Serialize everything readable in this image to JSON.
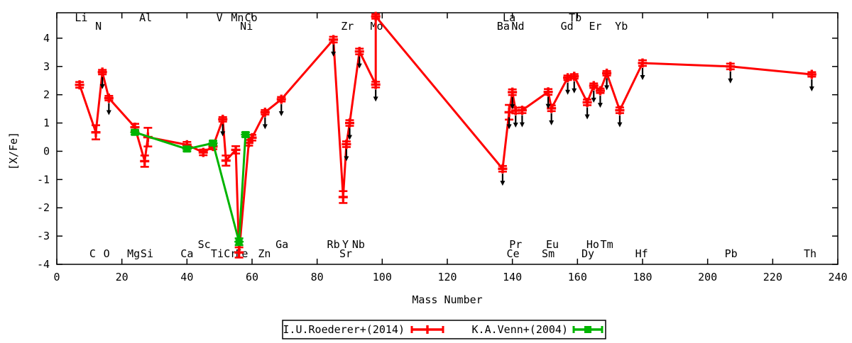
{
  "chart_data": {
    "type": "line",
    "title": "",
    "xlabel": "Mass Number",
    "ylabel": "[X/Fe]",
    "xlim": [
      0,
      240
    ],
    "ylim": [
      -4,
      4.9
    ],
    "xticks": [
      0,
      20,
      40,
      60,
      80,
      100,
      120,
      140,
      160,
      180,
      200,
      220,
      240
    ],
    "yticks": [
      -4,
      -3,
      -2,
      -1,
      0,
      1,
      2,
      3,
      4
    ],
    "grid": false,
    "legend_position": "below-plot-center",
    "upper_limit_symbol": "black-downward-arrow",
    "colors": {
      "roederer": "#ff0000",
      "venn": "#00b400",
      "arrows": "#000000",
      "frame": "#000000"
    },
    "series": [
      {
        "name": "I.U.Roederer+(2014)",
        "color": "#ff0000",
        "marker": "plus",
        "points": [
          {
            "element": "Li",
            "x": 7,
            "y": 2.35,
            "err": 0.1,
            "limit": false
          },
          {
            "element": "C",
            "x": 12,
            "y": 0.67,
            "err": 0.25,
            "limit": false
          },
          {
            "element": "N",
            "x": 14,
            "y": 2.8,
            "err": 0.08,
            "limit": true
          },
          {
            "element": "O",
            "x": 16,
            "y": 1.88,
            "err": 0.08,
            "limit": true
          },
          {
            "element": "Mg",
            "x": 24,
            "y": 0.85,
            "err": 0.12,
            "limit": false
          },
          {
            "element": "Al",
            "x": 27,
            "y": -0.35,
            "err": 0.2,
            "limit": false
          },
          {
            "element": "Si",
            "x": 28,
            "y": 0.5,
            "err": 0.33,
            "limit": false
          },
          {
            "element": "Ca",
            "x": 40,
            "y": 0.23,
            "err": 0.1,
            "limit": false
          },
          {
            "element": "Sc",
            "x": 45,
            "y": -0.04,
            "err": 0.1,
            "limit": false
          },
          {
            "element": "Ti",
            "x": 48,
            "y": 0.17,
            "err": 0.1,
            "limit": false
          },
          {
            "element": "V",
            "x": 51,
            "y": 1.13,
            "err": 0.08,
            "limit": true
          },
          {
            "element": "Cr",
            "x": 52,
            "y": -0.33,
            "err": 0.18,
            "limit": false
          },
          {
            "element": "Mn",
            "x": 55,
            "y": 0.05,
            "err": 0.13,
            "limit": false
          },
          {
            "element": "Fe",
            "x": 56,
            "y": -3.58,
            "err": 0.18,
            "limit": false
          },
          {
            "element": "Co",
            "x": 59,
            "y": 0.3,
            "err": 0.1,
            "limit": false
          },
          {
            "element": "Ni",
            "x": 60,
            "y": 0.48,
            "err": 0.1,
            "limit": false
          },
          {
            "element": "Zn",
            "x": 64,
            "y": 1.38,
            "err": 0.08,
            "limit": true
          },
          {
            "element": "Ga",
            "x": 69,
            "y": 1.84,
            "err": 0.08,
            "limit": true
          },
          {
            "element": "Rb",
            "x": 85,
            "y": 3.95,
            "err": 0.1,
            "limit": true
          },
          {
            "element": "Sr",
            "x": 88,
            "y": -1.62,
            "err": 0.21,
            "limit": false
          },
          {
            "element": "Y",
            "x": 89,
            "y": 0.25,
            "err": 0.1,
            "limit": true
          },
          {
            "element": "Zr",
            "x": 90,
            "y": 1.0,
            "err": 0.1,
            "limit": true
          },
          {
            "element": "Nb",
            "x": 93,
            "y": 3.53,
            "err": 0.1,
            "limit": true
          },
          {
            "element": "Mo",
            "x": 98,
            "y": 2.36,
            "err": 0.1,
            "limit": true
          },
          {
            "element": "Mo",
            "x": 98,
            "y": 4.77,
            "err": 0.08,
            "limit": false
          },
          {
            "element": "Ba",
            "x": 137,
            "y": -0.62,
            "err": 0.1,
            "limit": true
          },
          {
            "element": "La",
            "x": 139,
            "y": 1.38,
            "err": 0.26,
            "limit": true
          },
          {
            "element": "Ce",
            "x": 140,
            "y": 2.09,
            "err": 0.1,
            "limit": true
          },
          {
            "element": "Pr",
            "x": 141,
            "y": 1.44,
            "err": 0.1,
            "limit": true
          },
          {
            "element": "Nd",
            "x": 143,
            "y": 1.45,
            "err": 0.1,
            "limit": true
          },
          {
            "element": "Sm",
            "x": 151,
            "y": 2.1,
            "err": 0.1,
            "limit": true
          },
          {
            "element": "Eu",
            "x": 152,
            "y": 1.52,
            "err": 0.1,
            "limit": true
          },
          {
            "element": "Gd",
            "x": 157,
            "y": 2.6,
            "err": 0.08,
            "limit": true
          },
          {
            "element": "Tb",
            "x": 159,
            "y": 2.65,
            "err": 0.08,
            "limit": true
          },
          {
            "element": "Dy",
            "x": 163,
            "y": 1.73,
            "err": 0.1,
            "limit": true
          },
          {
            "element": "Ho",
            "x": 165,
            "y": 2.32,
            "err": 0.08,
            "limit": true
          },
          {
            "element": "Er",
            "x": 167,
            "y": 2.14,
            "err": 0.08,
            "limit": true
          },
          {
            "element": "Tm",
            "x": 169,
            "y": 2.76,
            "err": 0.08,
            "limit": true
          },
          {
            "element": "Yb",
            "x": 173,
            "y": 1.45,
            "err": 0.1,
            "limit": true
          },
          {
            "element": "Hf",
            "x": 180,
            "y": 3.12,
            "err": 0.1,
            "limit": true
          },
          {
            "element": "Pb",
            "x": 207,
            "y": 3.0,
            "err": 0.1,
            "limit": true
          },
          {
            "element": "Th",
            "x": 232,
            "y": 2.72,
            "err": 0.08,
            "limit": true
          }
        ]
      },
      {
        "name": "K.A.Venn+(2004)",
        "color": "#00b400",
        "marker": "square",
        "points": [
          {
            "element": "Mg",
            "x": 24,
            "y": 0.67,
            "err": 0.08,
            "limit": false
          },
          {
            "element": "Ca",
            "x": 40,
            "y": 0.08,
            "err": 0.08,
            "limit": false
          },
          {
            "element": "Ti",
            "x": 48,
            "y": 0.29,
            "err": 0.08,
            "limit": false
          },
          {
            "element": "Fe",
            "x": 56,
            "y": -3.2,
            "err": 0.12,
            "limit": false
          },
          {
            "element": "Ni",
            "x": 58,
            "y": 0.59,
            "err": 0.08,
            "limit": false
          }
        ]
      }
    ],
    "element_labels": [
      {
        "text": "Li",
        "x": 7.5,
        "row": "top1"
      },
      {
        "text": "N",
        "x": 12.8,
        "row": "top2"
      },
      {
        "text": "Al",
        "x": 27.3,
        "row": "top1"
      },
      {
        "text": "V",
        "x": 50,
        "row": "top1"
      },
      {
        "text": "Mn",
        "x": 55.5,
        "row": "top1"
      },
      {
        "text": "Co",
        "x": 59.7,
        "row": "top1"
      },
      {
        "text": "Ni",
        "x": 58.3,
        "row": "top2"
      },
      {
        "text": "Zr",
        "x": 89.3,
        "row": "top2"
      },
      {
        "text": "Mo",
        "x": 98.3,
        "row": "top2"
      },
      {
        "text": "La",
        "x": 139,
        "row": "top1"
      },
      {
        "text": "Ba",
        "x": 137.2,
        "row": "top2"
      },
      {
        "text": "Nd",
        "x": 141.7,
        "row": "top2"
      },
      {
        "text": "Tb",
        "x": 159.3,
        "row": "top1"
      },
      {
        "text": "Gd",
        "x": 156.8,
        "row": "top2"
      },
      {
        "text": "Er",
        "x": 165.5,
        "row": "top2"
      },
      {
        "text": "Yb",
        "x": 173.5,
        "row": "top2"
      },
      {
        "text": "C",
        "x": 11,
        "row": "bot2"
      },
      {
        "text": "O",
        "x": 15.3,
        "row": "bot2"
      },
      {
        "text": "Mg",
        "x": 23.6,
        "row": "bot2"
      },
      {
        "text": "Si",
        "x": 27.7,
        "row": "bot2"
      },
      {
        "text": "Ca",
        "x": 40,
        "row": "bot2"
      },
      {
        "text": "Sc",
        "x": 45.3,
        "row": "bot1"
      },
      {
        "text": "Ti",
        "x": 49.3,
        "row": "bot2"
      },
      {
        "text": "Cr",
        "x": 53.3,
        "row": "bot2"
      },
      {
        "text": "Fe",
        "x": 56.8,
        "row": "bot2"
      },
      {
        "text": "Zn",
        "x": 63.8,
        "row": "bot2"
      },
      {
        "text": "Ga",
        "x": 69.2,
        "row": "bot1"
      },
      {
        "text": "Rb",
        "x": 85,
        "row": "bot1"
      },
      {
        "text": "Y",
        "x": 88.7,
        "row": "bot1"
      },
      {
        "text": "Sr",
        "x": 88.8,
        "row": "bot2"
      },
      {
        "text": "Nb",
        "x": 92.7,
        "row": "bot1"
      },
      {
        "text": "Pr",
        "x": 141,
        "row": "bot1"
      },
      {
        "text": "Ce",
        "x": 140.2,
        "row": "bot2"
      },
      {
        "text": "Eu",
        "x": 152.3,
        "row": "bot1"
      },
      {
        "text": "Sm",
        "x": 151,
        "row": "bot2"
      },
      {
        "text": "Ho",
        "x": 164.7,
        "row": "bot1"
      },
      {
        "text": "Tm",
        "x": 169,
        "row": "bot1"
      },
      {
        "text": "Dy",
        "x": 163.2,
        "row": "bot2"
      },
      {
        "text": "Hf",
        "x": 179.7,
        "row": "bot2"
      },
      {
        "text": "Pb",
        "x": 207.2,
        "row": "bot2"
      },
      {
        "text": "Th",
        "x": 231.5,
        "row": "bot2"
      }
    ]
  }
}
